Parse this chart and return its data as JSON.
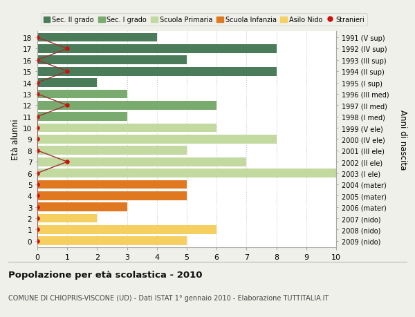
{
  "ages": [
    18,
    17,
    16,
    15,
    14,
    13,
    12,
    11,
    10,
    9,
    8,
    7,
    6,
    5,
    4,
    3,
    2,
    1,
    0
  ],
  "years": [
    "1991 (V sup)",
    "1992 (IV sup)",
    "1993 (III sup)",
    "1994 (II sup)",
    "1995 (I sup)",
    "1996 (III med)",
    "1997 (II med)",
    "1998 (I med)",
    "1999 (V ele)",
    "2000 (IV ele)",
    "2001 (III ele)",
    "2002 (II ele)",
    "2003 (I ele)",
    "2004 (mater)",
    "2005 (mater)",
    "2006 (mater)",
    "2007 (nido)",
    "2008 (nido)",
    "2009 (nido)"
  ],
  "bar_values": [
    4,
    8,
    5,
    8,
    2,
    3,
    6,
    3,
    6,
    8,
    5,
    7,
    10,
    5,
    5,
    3,
    2,
    6,
    5
  ],
  "bar_colors": [
    "#4a7c59",
    "#4a7c59",
    "#4a7c59",
    "#4a7c59",
    "#4a7c59",
    "#7aab6e",
    "#7aab6e",
    "#7aab6e",
    "#c2d9a0",
    "#c2d9a0",
    "#c2d9a0",
    "#c2d9a0",
    "#c2d9a0",
    "#e07820",
    "#e07820",
    "#e07820",
    "#f5d060",
    "#f5d060",
    "#f5d060"
  ],
  "stranieri": [
    0,
    1,
    0,
    1,
    0,
    0,
    1,
    0,
    0,
    0,
    0,
    1,
    0,
    0,
    0,
    0,
    0,
    0,
    0
  ],
  "legend_labels": [
    "Sec. II grado",
    "Sec. I grado",
    "Scuola Primaria",
    "Scuola Infanzia",
    "Asilo Nido",
    "Stranieri"
  ],
  "legend_colors": [
    "#4a7c59",
    "#7aab6e",
    "#c2d9a0",
    "#e07820",
    "#f5d060",
    "#cc2222"
  ],
  "ylabel": "Età alunni",
  "ylabel_right": "Anni di nascita",
  "title": "Popolazione per età scolastica - 2010",
  "subtitle": "COMUNE DI CHIOPRIS-VISCONE (UD) - Dati ISTAT 1° gennaio 2010 - Elaborazione TUTTITALIA.IT",
  "xlim": [
    0,
    10
  ],
  "xticks": [
    0,
    1,
    2,
    3,
    4,
    5,
    6,
    7,
    8,
    9,
    10
  ],
  "background_color": "#f0f0eb",
  "plot_bg_color": "#ffffff",
  "grid_color": "#cccccc",
  "bar_height": 0.78,
  "stranieri_color": "#cc1111",
  "stranieri_line_color": "#993333"
}
